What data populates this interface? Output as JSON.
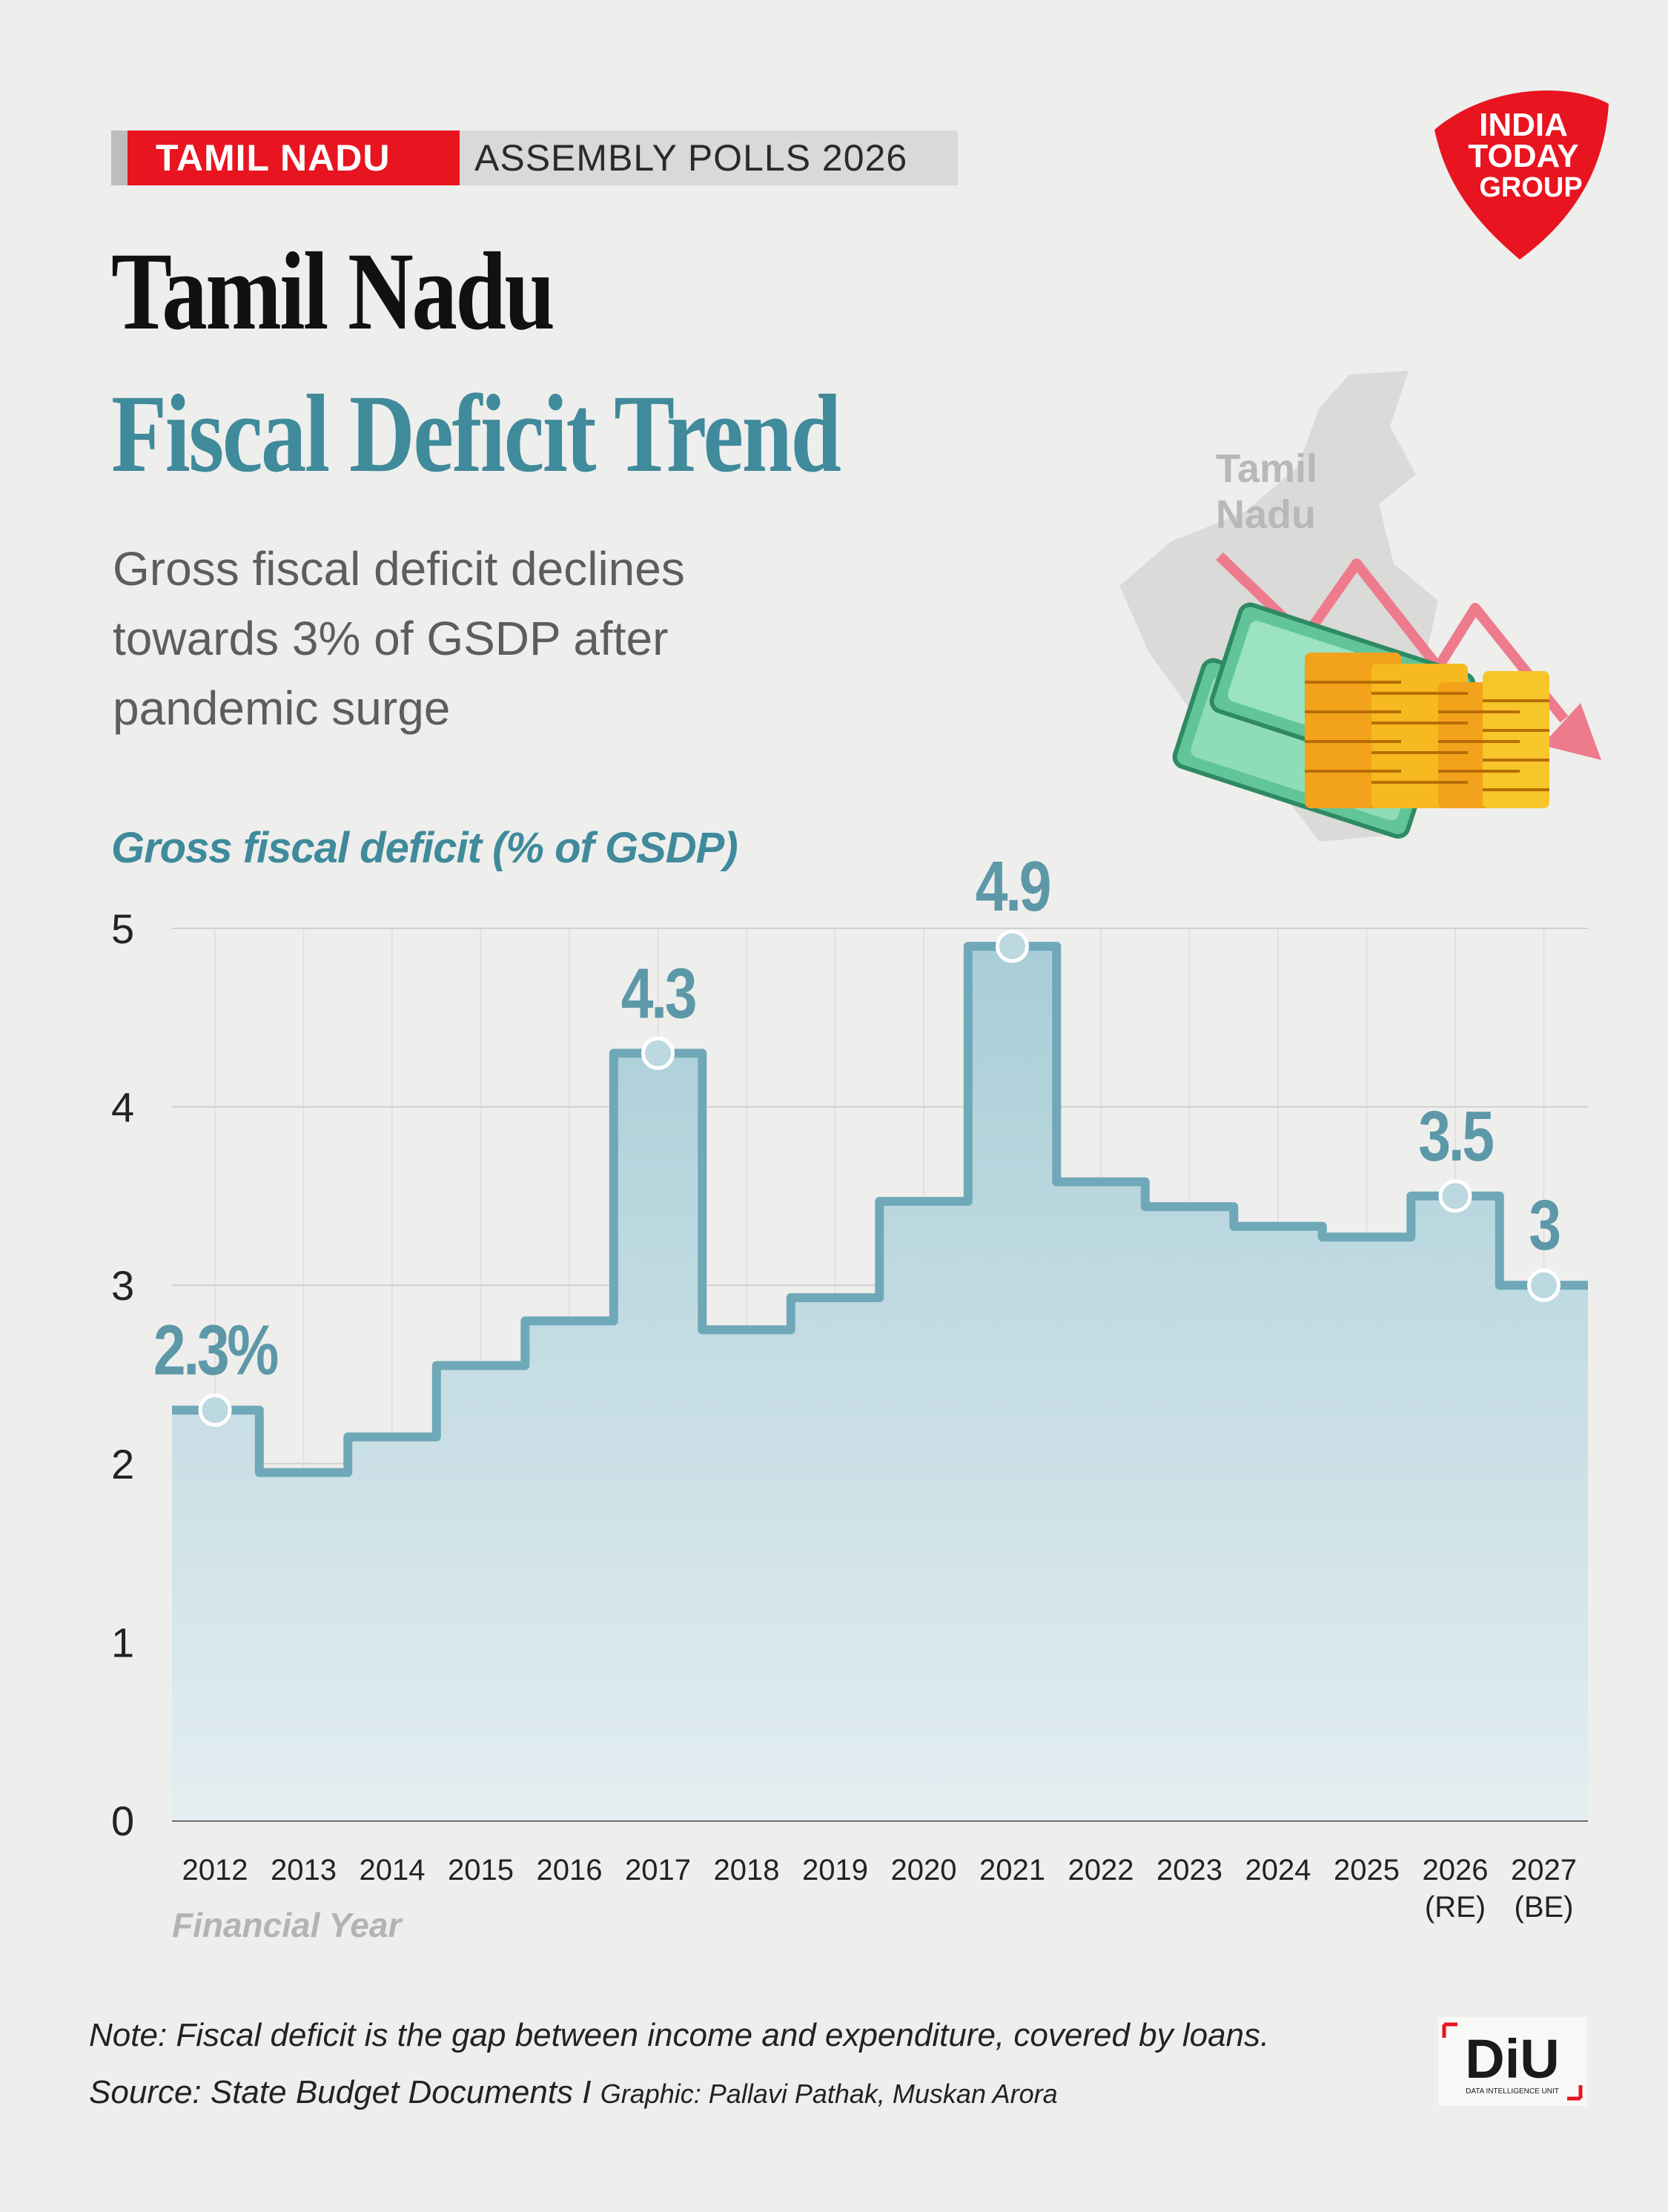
{
  "header": {
    "tag_state": "TAMIL NADU",
    "tag_event": "ASSEMBLY POLLS  2026",
    "logo": {
      "line1": "INDIA",
      "line2": "TODAY",
      "line3": "GROUP"
    }
  },
  "title": {
    "line1": "Tamil Nadu",
    "line2": "Fiscal Deficit Trend"
  },
  "subtitle": "Gross fiscal deficit declines towards 3% of GSDP after pandemic surge",
  "illustration": {
    "map_label_line1": "Tamil",
    "map_label_line2": "Nadu",
    "icons": [
      "tamil-nadu-map-icon",
      "downward-trend-arrow-icon",
      "banknotes-icon",
      "coin-stacks-icon"
    ]
  },
  "chart_data": {
    "type": "step-area",
    "title": "Gross fiscal deficit (% of GSDP)",
    "xlabel": "Financial Year",
    "ylabel": "Gross fiscal deficit (% of GSDP)",
    "ylim": [
      0,
      5
    ],
    "yticks": [
      "0",
      "1",
      "2",
      "3",
      "4",
      "5"
    ],
    "categories": [
      "2012",
      "2013",
      "2014",
      "2015",
      "2016",
      "2017",
      "2018",
      "2019",
      "2020",
      "2021",
      "2022",
      "2023",
      "2024",
      "2025",
      "2026",
      "2027"
    ],
    "category_sublabels": [
      "",
      "",
      "",
      "",
      "",
      "",
      "",
      "",
      "",
      "",
      "",
      "",
      "",
      "",
      "(RE)",
      "(BE)"
    ],
    "values": [
      2.3,
      1.95,
      2.15,
      2.55,
      2.8,
      4.3,
      2.75,
      2.93,
      3.47,
      4.9,
      3.58,
      3.44,
      3.33,
      3.27,
      3.5,
      3.0
    ],
    "annotations": [
      {
        "index": 0,
        "label": "2.3%"
      },
      {
        "index": 5,
        "label": "4.3"
      },
      {
        "index": 9,
        "label": "4.9"
      },
      {
        "index": 14,
        "label": "3.5"
      },
      {
        "index": 15,
        "label": "3"
      }
    ],
    "grid": true,
    "colors": {
      "line": "#6fa8b8",
      "fill_top": "#a8cdd7",
      "fill_bottom": "#e4eef1",
      "marker": "#bcd8e0",
      "label": "#5d98a8"
    }
  },
  "footer": {
    "note": "Note: Fiscal deficit is the gap between income and expenditure, covered by loans.",
    "source": "Source: State Budget Documents I",
    "credit": "Graphic: Pallavi Pathak, Muskan Arora",
    "diu_logo": "DiU",
    "diu_sub": "DATA INTELLIGENCE UNIT"
  }
}
